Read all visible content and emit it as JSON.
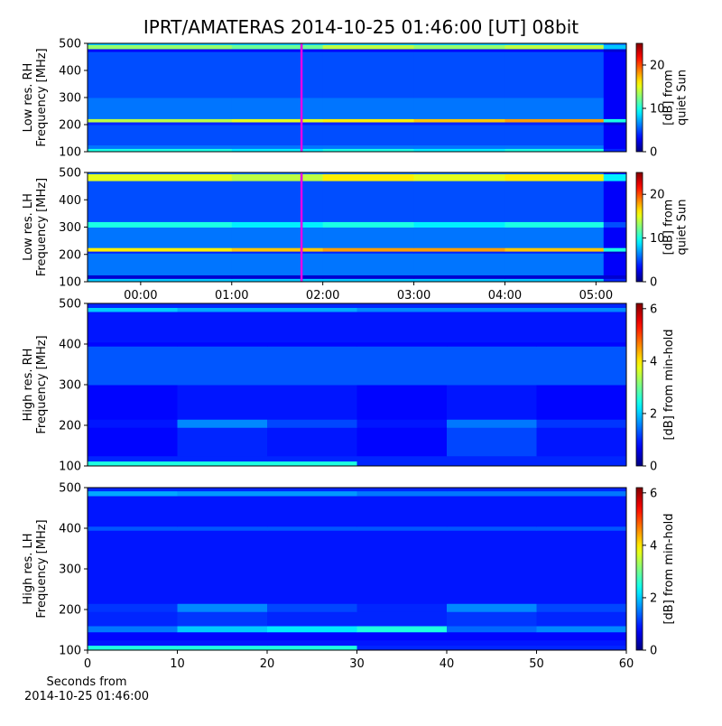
{
  "chart_data": [
    {
      "type": "heatmap",
      "title": "IPRT/AMATERAS 2014-10-25 01:46:00 [UT]   08bit",
      "ylabel": [
        "Low res. RH",
        "Frequency [MHz]"
      ],
      "xlim": [
        -35,
        320
      ],
      "ylim": [
        100,
        500
      ],
      "yticks": [
        100,
        200,
        300,
        400,
        500
      ],
      "x_edges": [
        -35,
        60,
        120,
        180,
        240,
        305,
        320
      ],
      "y_edges": [
        100,
        112,
        125,
        200,
        210,
        222,
        300,
        470,
        480,
        495,
        500
      ],
      "z": [
        [
          10,
          9,
          10,
          9,
          10,
          4
        ],
        [
          6,
          6,
          6,
          6,
          6,
          3
        ],
        [
          5,
          5,
          5,
          5,
          5,
          3
        ],
        [
          4,
          4,
          4,
          4,
          4,
          2
        ],
        [
          14,
          15,
          16,
          17,
          18,
          10
        ],
        [
          6,
          6,
          6,
          6,
          6,
          3
        ],
        [
          5,
          5,
          5,
          5,
          5,
          3
        ],
        [
          3,
          3,
          3,
          3,
          3,
          2
        ],
        [
          13,
          12,
          14,
          13,
          14,
          8
        ],
        [
          8,
          8,
          8,
          8,
          8,
          6
        ]
      ],
      "colormap": "jet",
      "clim": [
        0,
        25
      ],
      "cticks": [
        0,
        10,
        20
      ],
      "clabel": [
        "[dB] from",
        "quiet Sun"
      ],
      "marker_x": 106,
      "marker_color": "#e600e6"
    },
    {
      "type": "heatmap",
      "ylabel": [
        "Low res. LH",
        "Frequency [MHz]"
      ],
      "xlim": [
        -35,
        320
      ],
      "xticks": [
        {
          "value": 0,
          "label": "00:00"
        },
        {
          "value": 60,
          "label": "01:00"
        },
        {
          "value": 120,
          "label": "02:00"
        },
        {
          "value": 180,
          "label": "03:00"
        },
        {
          "value": 240,
          "label": "04:00"
        },
        {
          "value": 300,
          "label": "05:00"
        }
      ],
      "ylim": [
        100,
        500
      ],
      "yticks": [
        100,
        200,
        300,
        400,
        500
      ],
      "x_edges": [
        -35,
        60,
        120,
        180,
        240,
        305,
        320
      ],
      "y_edges": [
        100,
        112,
        125,
        205,
        212,
        225,
        300,
        320,
        470,
        495,
        500
      ],
      "z": [
        [
          8,
          8,
          8,
          8,
          8,
          4
        ],
        [
          2,
          2,
          2,
          2,
          2,
          2
        ],
        [
          6,
          6,
          6,
          6,
          6,
          3
        ],
        [
          4,
          4,
          4,
          4,
          4,
          2
        ],
        [
          16,
          17,
          18,
          18,
          17,
          10
        ],
        [
          6,
          6,
          6,
          6,
          6,
          3
        ],
        [
          10,
          9,
          10,
          9,
          10,
          5
        ],
        [
          5,
          5,
          5,
          5,
          5,
          3
        ],
        [
          15,
          14,
          16,
          15,
          16,
          9
        ],
        [
          6,
          6,
          6,
          6,
          6,
          4
        ]
      ],
      "colormap": "jet",
      "clim": [
        0,
        25
      ],
      "cticks": [
        0,
        10,
        20
      ],
      "clabel": [
        "[dB] from",
        "quiet Sun"
      ],
      "marker_x": 106,
      "marker_color": "#e600e6"
    },
    {
      "type": "heatmap",
      "ylabel": [
        "High res. RH",
        "Frequency [MHz]"
      ],
      "xlim": [
        0,
        60
      ],
      "ylim": [
        100,
        500
      ],
      "yticks": [
        100,
        200,
        300,
        400,
        500
      ],
      "x_edges": [
        0,
        10,
        20,
        30,
        40,
        50,
        60
      ],
      "y_edges": [
        100,
        112,
        125,
        195,
        215,
        300,
        395,
        405,
        480,
        490,
        500
      ],
      "z": [
        [
          2.5,
          2.5,
          2.5,
          1,
          1,
          1
        ],
        [
          1,
          1,
          1,
          1,
          1,
          1
        ],
        [
          0.8,
          1,
          0.9,
          0.8,
          1.2,
          0.9
        ],
        [
          0.9,
          1.6,
          1.2,
          0.9,
          1.5,
          1.1
        ],
        [
          0.8,
          0.9,
          0.9,
          0.8,
          0.9,
          0.8
        ],
        [
          1.3,
          1.3,
          1.3,
          1.3,
          1.3,
          1.3
        ],
        [
          0.8,
          0.8,
          0.8,
          0.8,
          0.8,
          0.8
        ],
        [
          0.9,
          0.9,
          0.9,
          0.9,
          0.9,
          0.9
        ],
        [
          2,
          1.8,
          1.8,
          1.6,
          1.6,
          1.6
        ],
        [
          1,
          1,
          1,
          1,
          1,
          1
        ]
      ],
      "colormap": "jet",
      "clim": [
        0,
        6.2
      ],
      "cticks": [
        0,
        2,
        4,
        6
      ],
      "clabel": [
        "[dB] from min-hold"
      ]
    },
    {
      "type": "heatmap",
      "ylabel": [
        "High res. LH",
        "Frequency [MHz]"
      ],
      "xlabel": [
        "Seconds from",
        "2014-10-25 01:46:00"
      ],
      "xlim": [
        0,
        60
      ],
      "xticks": [
        0,
        10,
        20,
        30,
        40,
        50,
        60
      ],
      "ylim": [
        100,
        500
      ],
      "yticks": [
        100,
        200,
        300,
        400,
        500
      ],
      "x_edges": [
        0,
        10,
        20,
        30,
        40,
        50,
        60
      ],
      "y_edges": [
        100,
        112,
        125,
        145,
        160,
        195,
        215,
        395,
        405,
        480,
        492,
        500
      ],
      "z": [
        [
          2.5,
          2.5,
          2.5,
          1,
          1,
          1
        ],
        [
          0.9,
          0.9,
          0.9,
          0.9,
          0.9,
          0.9
        ],
        [
          0.8,
          0.8,
          0.8,
          0.8,
          0.8,
          0.8
        ],
        [
          1.5,
          2,
          2.2,
          2.5,
          1.4,
          1.6
        ],
        [
          1,
          1.1,
          1,
          1,
          1.1,
          1
        ],
        [
          1.1,
          1.6,
          1.2,
          1,
          1.6,
          1.2
        ],
        [
          0.9,
          0.9,
          0.9,
          0.9,
          0.9,
          0.9
        ],
        [
          1.3,
          1.3,
          1.3,
          1.3,
          1.3,
          1.3
        ],
        [
          0.9,
          0.9,
          0.9,
          0.9,
          0.9,
          0.9
        ],
        [
          1.8,
          1.7,
          1.7,
          1.5,
          1.5,
          1.5
        ],
        [
          1,
          1,
          1,
          1,
          1,
          1
        ]
      ],
      "colormap": "jet",
      "clim": [
        0,
        6.2
      ],
      "cticks": [
        0,
        2,
        4,
        6
      ],
      "clabel": [
        "[dB] from min-hold"
      ]
    }
  ]
}
